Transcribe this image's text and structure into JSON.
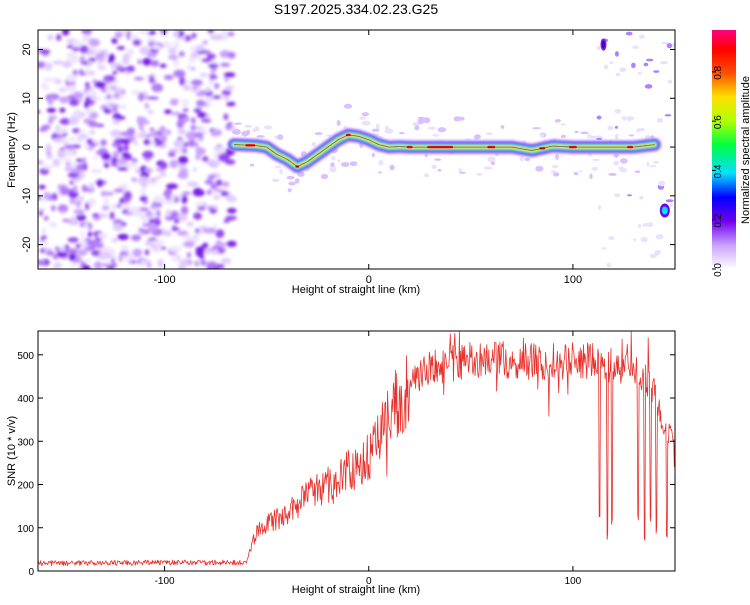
{
  "page_title": "S197.2025.334.02.23.G25",
  "chart_data": [
    {
      "type": "heatmap",
      "xlabel": "Height of straight line (km)",
      "ylabel": "Frequency (Hz)",
      "xlim": [
        -162,
        150
      ],
      "ylim": [
        -25,
        24
      ],
      "x_ticks": [
        -100,
        0,
        100
      ],
      "y_ticks": [
        -20,
        -10,
        0,
        10,
        20
      ],
      "colorbar": {
        "label": "Normalized spectral amplitude",
        "range": [
          0,
          0.97
        ],
        "ticks": [
          "0.0",
          "0.2",
          "0.4",
          "0.6",
          "0.8"
        ],
        "colors": [
          "#ffffff",
          "#c9a0ff",
          "#7000ee",
          "#0000ff",
          "#00e0ff",
          "#00ff40",
          "#b0ff00",
          "#ffe000",
          "#ff5000",
          "#ff0000",
          "#ff0080"
        ]
      },
      "noise_region_x": [
        -162,
        -67
      ],
      "ridge": {
        "x": [
          -66,
          -60,
          -55,
          -50,
          -45,
          -40,
          -35,
          -30,
          -25,
          -20,
          -15,
          -10,
          -5,
          0,
          5,
          10,
          15,
          20,
          30,
          40,
          50,
          60,
          70,
          80,
          90,
          100,
          110,
          120,
          130,
          140
        ],
        "y": [
          0.5,
          0.4,
          0.3,
          0,
          -1.5,
          -2.5,
          -4,
          -3,
          -1.5,
          0,
          1.5,
          2.5,
          2.2,
          1.5,
          0.5,
          0,
          0.1,
          0,
          0,
          0,
          0,
          0,
          0,
          -0.7,
          0.2,
          0,
          0,
          0,
          0,
          0.5
        ]
      },
      "late_feature": {
        "x": 145,
        "y": -13
      }
    },
    {
      "type": "line",
      "xlabel": "Height of straight line (km)",
      "ylabel": "SNR (10 * v/v)",
      "xlim": [
        -162,
        150
      ],
      "ylim": [
        0,
        555
      ],
      "x_ticks": [
        -100,
        0,
        100
      ],
      "y_ticks": [
        0,
        100,
        200,
        300,
        400,
        500
      ],
      "line_color": "#e8312c",
      "envelope": {
        "x": [
          -162,
          -60,
          -55,
          -40,
          -30,
          -20,
          -10,
          0,
          5,
          10,
          20,
          30,
          40,
          60,
          80,
          100,
          110,
          120,
          125,
          130,
          140,
          145,
          150
        ],
        "y": [
          18,
          20,
          95,
          130,
          175,
          200,
          230,
          260,
          310,
          360,
          430,
          470,
          480,
          490,
          485,
          485,
          485,
          480,
          470,
          460,
          420,
          330,
          300
        ]
      },
      "dropouts": [
        {
          "x": 113,
          "y": 110
        },
        {
          "x": 117,
          "y": 70
        },
        {
          "x": 119,
          "y": 95
        },
        {
          "x": 132,
          "y": 110
        },
        {
          "x": 135,
          "y": 70
        },
        {
          "x": 138,
          "y": 100
        },
        {
          "x": 141,
          "y": 80
        },
        {
          "x": 146,
          "y": 60
        }
      ]
    }
  ]
}
